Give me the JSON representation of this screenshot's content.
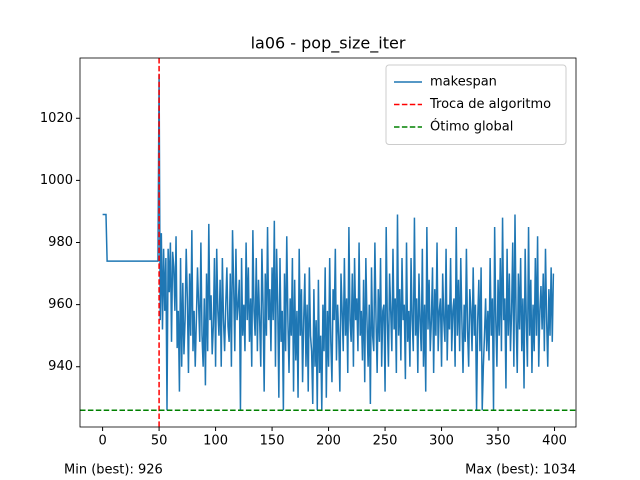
{
  "chart_data": {
    "type": "line",
    "title": "la06 - pop_size_iter",
    "x": [
      0,
      1,
      2,
      3,
      4,
      5,
      6,
      7,
      8,
      9,
      10,
      11,
      12,
      13,
      14,
      15,
      16,
      17,
      18,
      19,
      20,
      21,
      22,
      23,
      24,
      25,
      26,
      27,
      28,
      29,
      30,
      31,
      32,
      33,
      34,
      35,
      36,
      37,
      38,
      39,
      40,
      41,
      42,
      43,
      44,
      45,
      46,
      47,
      48,
      49,
      50,
      51,
      52,
      53,
      54,
      55,
      56,
      57,
      58,
      59,
      60,
      61,
      62,
      63,
      64,
      65,
      66,
      67,
      68,
      69,
      70,
      71,
      72,
      73,
      74,
      75,
      76,
      77,
      78,
      79,
      80,
      81,
      82,
      83,
      84,
      85,
      86,
      87,
      88,
      89,
      90,
      91,
      92,
      93,
      94,
      95,
      96,
      97,
      98,
      99,
      100,
      101,
      102,
      103,
      104,
      105,
      106,
      107,
      108,
      109,
      110,
      111,
      112,
      113,
      114,
      115,
      116,
      117,
      118,
      119,
      120,
      121,
      122,
      123,
      124,
      125,
      126,
      127,
      128,
      129,
      130,
      131,
      132,
      133,
      134,
      135,
      136,
      137,
      138,
      139,
      140,
      141,
      142,
      143,
      144,
      145,
      146,
      147,
      148,
      149,
      150,
      151,
      152,
      153,
      154,
      155,
      156,
      157,
      158,
      159,
      160,
      161,
      162,
      163,
      164,
      165,
      166,
      167,
      168,
      169,
      170,
      171,
      172,
      173,
      174,
      175,
      176,
      177,
      178,
      179,
      180,
      181,
      182,
      183,
      184,
      185,
      186,
      187,
      188,
      189,
      190,
      191,
      192,
      193,
      194,
      195,
      196,
      197,
      198,
      199,
      200,
      201,
      202,
      203,
      204,
      205,
      206,
      207,
      208,
      209,
      210,
      211,
      212,
      213,
      214,
      215,
      216,
      217,
      218,
      219,
      220,
      221,
      222,
      223,
      224,
      225,
      226,
      227,
      228,
      229,
      230,
      231,
      232,
      233,
      234,
      235,
      236,
      237,
      238,
      239,
      240,
      241,
      242,
      243,
      244,
      245,
      246,
      247,
      248,
      249,
      250,
      251,
      252,
      253,
      254,
      255,
      256,
      257,
      258,
      259,
      260,
      261,
      262,
      263,
      264,
      265,
      266,
      267,
      268,
      269,
      270,
      271,
      272,
      273,
      274,
      275,
      276,
      277,
      278,
      279,
      280,
      281,
      282,
      283,
      284,
      285,
      286,
      287,
      288,
      289,
      290,
      291,
      292,
      293,
      294,
      295,
      296,
      297,
      298,
      299,
      300,
      301,
      302,
      303,
      304,
      305,
      306,
      307,
      308,
      309,
      310,
      311,
      312,
      313,
      314,
      315,
      316,
      317,
      318,
      319,
      320,
      321,
      322,
      323,
      324,
      325,
      326,
      327,
      328,
      329,
      330,
      331,
      332,
      333,
      334,
      335,
      336,
      337,
      338,
      339,
      340,
      341,
      342,
      343,
      344,
      345,
      346,
      347,
      348,
      349,
      350,
      351,
      352,
      353,
      354,
      355,
      356,
      357,
      358,
      359,
      360,
      361,
      362,
      363,
      364,
      365,
      366,
      367,
      368,
      369,
      370,
      371,
      372,
      373,
      374,
      375,
      376,
      377,
      378,
      379,
      380,
      381,
      382,
      383,
      384,
      385,
      386,
      387,
      388,
      389,
      390,
      391,
      392,
      393,
      394,
      395,
      396,
      397,
      398,
      399
    ],
    "series": [
      {
        "name": "makespan",
        "color": "#1f77b4",
        "values": [
          989,
          989,
          989,
          989,
          974,
          974,
          974,
          974,
          974,
          974,
          974,
          974,
          974,
          974,
          974,
          974,
          974,
          974,
          974,
          974,
          974,
          974,
          974,
          974,
          974,
          974,
          974,
          974,
          974,
          974,
          974,
          974,
          974,
          974,
          974,
          974,
          974,
          974,
          974,
          974,
          974,
          974,
          974,
          974,
          974,
          974,
          974,
          974,
          974,
          974,
          1034,
          955,
          983,
          952,
          978,
          958,
          975,
          926,
          978,
          964,
          980,
          948,
          977,
          972,
          958,
          982,
          946,
          958,
          932,
          975,
          940,
          967,
          944,
          955,
          978,
          962,
          938,
          970,
          950,
          984,
          945,
          958,
          940,
          955,
          972,
          960,
          948,
          980,
          950,
          940,
          962,
          934,
          970,
          945,
          986,
          955,
          963,
          944,
          953,
          975,
          940,
          978,
          958,
          950,
          968,
          940,
          975,
          955,
          945,
          960,
          972,
          953,
          948,
          970,
          940,
          984,
          966,
          945,
          978,
          955,
          960,
          968,
          926,
          975,
          950,
          960,
          945,
          980,
          955,
          972,
          948,
          962,
          940,
          984,
          958,
          950,
          975,
          945,
          968,
          955,
          940,
          978,
          960,
          932,
          970,
          950,
          985,
          955,
          965,
          945,
          972,
          955,
          987,
          940,
          978,
          960,
          930,
          975,
          948,
          958,
          926,
          970,
          945,
          982,
          955,
          938,
          962,
          950,
          975,
          932,
          968,
          942,
          958,
          930,
          978,
          950,
          965,
          935,
          955,
          970,
          940,
          960,
          932,
          972,
          950,
          945,
          928,
          965,
          940,
          955,
          926,
          968,
          938,
          950,
          926,
          960,
          945,
          972,
          930,
          958,
          940,
          975,
          948,
          935,
          965,
          955,
          978,
          942,
          960,
          950,
          932,
          970,
          958,
          945,
          975,
          950,
          962,
          938,
          985,
          955,
          948,
          970,
          940,
          975,
          955,
          962,
          945,
          980,
          950,
          958,
          942,
          968,
          935,
          975,
          955,
          940,
          960,
          928,
          972,
          950,
          945,
          980,
          955,
          938,
          965,
          948,
          975,
          940,
          958,
          960,
          932,
          985,
          955,
          940,
          970,
          958,
          945,
          978,
          952,
          962,
          938,
          989,
          950,
          965,
          942,
          975,
          955,
          960,
          936,
          980,
          948,
          958,
          940,
          975,
          955,
          945,
          988,
          950,
          962,
          938,
          970,
          955,
          945,
          978,
          940,
          960,
          932,
          985,
          952,
          968,
          945,
          955,
          972,
          938,
          965,
          950,
          980,
          945,
          958,
          962,
          940,
          970,
          955,
          948,
          978,
          942,
          960,
          952,
          975,
          945,
          958,
          962,
          940,
          985,
          950,
          968,
          945,
          975,
          955,
          938,
          960,
          948,
          978,
          952,
          940,
          965,
          958,
          945,
          972,
          950,
          960,
          926,
          955,
          968,
          945,
          972,
          926,
          940,
          950,
          962,
          945,
          958,
          942,
          975,
          950,
          962,
          926,
          985,
          955,
          940,
          968,
          950,
          975,
          945,
          988,
          955,
          962,
          933,
          978,
          950,
          970,
          945,
          958,
          980,
          940,
          989,
          955,
          938,
          970,
          952,
          975,
          945,
          962,
          933,
          978,
          955,
          940,
          985,
          950,
          968,
          938,
          960,
          945,
          975,
          950,
          982,
          940,
          958,
          966,
          952,
          970,
          945,
          978,
          955,
          940,
          965,
          950,
          972,
          948,
          970
        ]
      }
    ],
    "vlines": [
      {
        "name": "Troca de algoritmo",
        "x": 50,
        "color": "#ff0000"
      }
    ],
    "hlines": [
      {
        "name": "Ótimo global",
        "y": 926,
        "color": "#008000"
      }
    ],
    "xlim": [
      -20,
      419
    ],
    "xticks": [
      0,
      50,
      100,
      150,
      200,
      250,
      300,
      350,
      400
    ],
    "ylim": [
      920.6,
      1039.4
    ],
    "yticks": [
      940,
      960,
      980,
      1000,
      1020
    ],
    "legend": "upper right",
    "footer": [
      "Min (best): 926",
      "Max (best): 1034"
    ]
  }
}
